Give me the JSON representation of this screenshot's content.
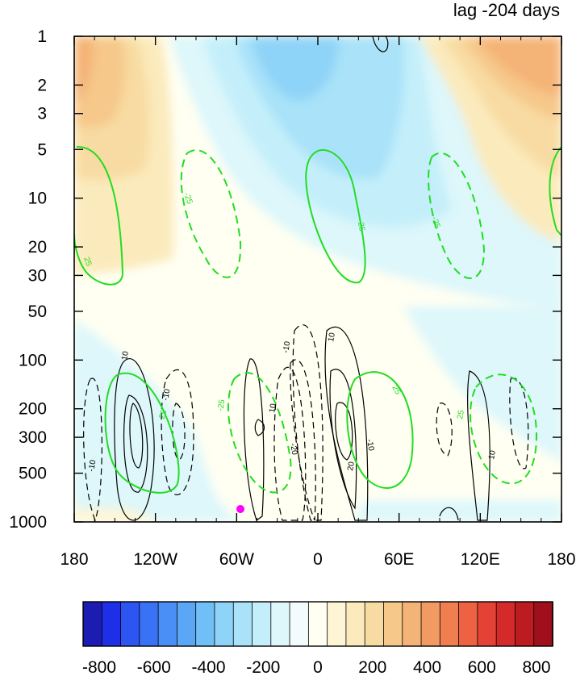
{
  "chart_data": {
    "type": "heatmap",
    "title": "lag -204 days",
    "xlabel": "",
    "ylabel": "",
    "x_ticks": [
      "180",
      "120W",
      "60W",
      "0",
      "60E",
      "120E",
      "180"
    ],
    "y_ticks": [
      "1",
      "2",
      "3",
      "5",
      "10",
      "20",
      "30",
      "50",
      "100",
      "200",
      "300",
      "500",
      "1000"
    ],
    "y_scale": "log",
    "y_reversed": true,
    "colorbar_ticks": [
      "-800",
      "-600",
      "-400",
      "-200",
      "0",
      "200",
      "400",
      "600",
      "800"
    ],
    "colorbar_colors": [
      "#1c1cb3",
      "#1f2fe8",
      "#2d55f2",
      "#3a72f5",
      "#4a8ff5",
      "#5aa8f5",
      "#70bff6",
      "#8ed3f8",
      "#a9e2f9",
      "#c4effa",
      "#ddf7fb",
      "#f3fcfd",
      "#fffff2",
      "#fdf5d5",
      "#fbeabc",
      "#f8dba2",
      "#f6c88a",
      "#f4b377",
      "#f29a62",
      "#ef7f50",
      "#ec6242",
      "#e44235",
      "#d42a2a",
      "#bd1b22",
      "#a0101c"
    ],
    "shading": "zonal-height anomaly bands (filled contours)",
    "contour_labels_black": [
      "10",
      "-10",
      "-20",
      "20"
    ],
    "contour_labels_green": [
      "25",
      "-25"
    ],
    "marker": {
      "lon": "60W",
      "level": "1000",
      "color": "#ff00ff"
    }
  }
}
